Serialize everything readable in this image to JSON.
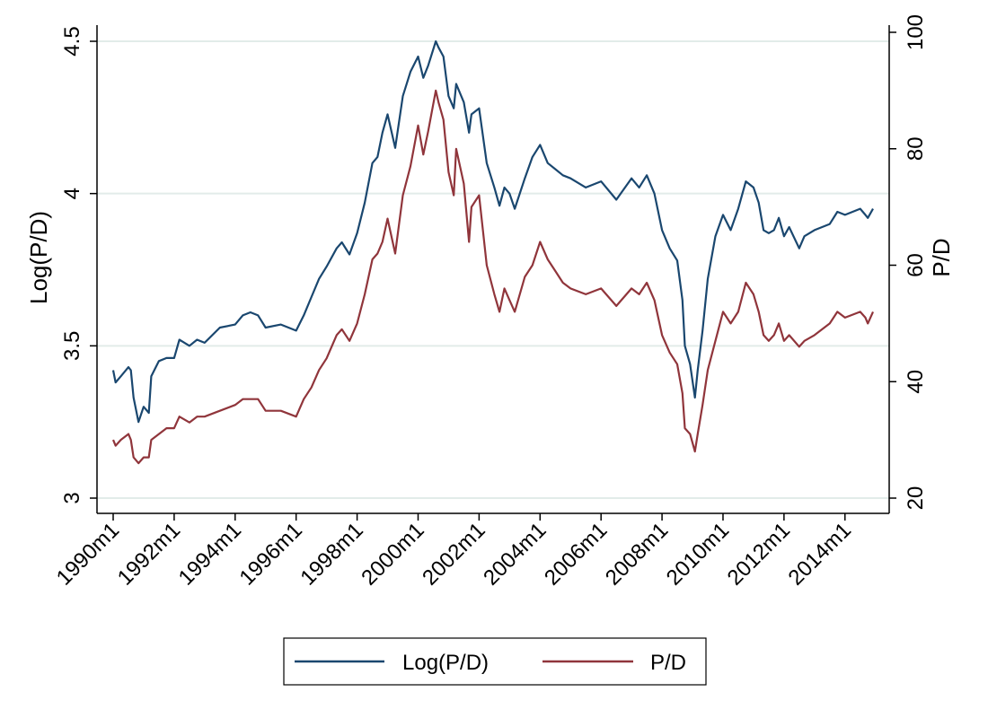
{
  "chart_data": {
    "type": "line",
    "title": "",
    "xlabel": "",
    "ylabel_left": "Log(P/D)",
    "ylabel_right": "P/D",
    "x_range": [
      1990.0,
      2014.92
    ],
    "ylim_left": [
      3,
      4.5
    ],
    "ylim_right": [
      20,
      100
    ],
    "y_ticks_left": [
      "3",
      "3.5",
      "4",
      "4.5"
    ],
    "y_ticks_right": [
      "20",
      "40",
      "60",
      "80",
      "100"
    ],
    "x_ticks": [
      "1990m1",
      "1992m1",
      "1994m1",
      "1996m1",
      "1998m1",
      "2000m1",
      "2002m1",
      "2004m1",
      "2006m1",
      "2008m1",
      "2010m1",
      "2012m1",
      "2014m1"
    ],
    "grid": "horizontal",
    "legend_position": "bottom",
    "colors": {
      "log_pd": "#1a476f",
      "pd": "#90353b",
      "grid": "#e2ece9"
    },
    "x": [
      1990.0,
      1990.08,
      1990.25,
      1990.5,
      1990.58,
      1990.67,
      1990.83,
      1991.0,
      1991.17,
      1991.25,
      1991.5,
      1991.75,
      1992.0,
      1992.17,
      1992.5,
      1992.75,
      1993.0,
      1993.5,
      1994.0,
      1994.25,
      1994.5,
      1994.75,
      1995.0,
      1995.5,
      1996.0,
      1996.25,
      1996.5,
      1996.75,
      1997.0,
      1997.33,
      1997.5,
      1997.75,
      1998.0,
      1998.25,
      1998.5,
      1998.67,
      1998.83,
      1999.0,
      1999.25,
      1999.5,
      1999.75,
      2000.0,
      2000.17,
      2000.33,
      2000.58,
      2000.67,
      2000.83,
      2001.0,
      2001.17,
      2001.25,
      2001.5,
      2001.67,
      2001.75,
      2002.0,
      2002.25,
      2002.5,
      2002.67,
      2002.83,
      2003.0,
      2003.17,
      2003.5,
      2003.75,
      2004.0,
      2004.25,
      2004.5,
      2004.75,
      2005.0,
      2005.5,
      2006.0,
      2006.5,
      2007.0,
      2007.25,
      2007.5,
      2007.75,
      2008.0,
      2008.25,
      2008.5,
      2008.67,
      2008.75,
      2008.92,
      2009.08,
      2009.17,
      2009.33,
      2009.5,
      2009.75,
      2010.0,
      2010.25,
      2010.5,
      2010.75,
      2011.0,
      2011.17,
      2011.33,
      2011.5,
      2011.67,
      2011.83,
      2012.0,
      2012.17,
      2012.5,
      2012.67,
      2013.0,
      2013.25,
      2013.5,
      2013.75,
      2014.0,
      2014.5,
      2014.67,
      2014.75,
      2014.92
    ],
    "series": [
      {
        "name": "Log(P/D)",
        "axis": "left",
        "values": [
          3.42,
          3.38,
          3.4,
          3.43,
          3.42,
          3.33,
          3.25,
          3.3,
          3.28,
          3.4,
          3.45,
          3.46,
          3.46,
          3.52,
          3.5,
          3.52,
          3.51,
          3.56,
          3.57,
          3.6,
          3.61,
          3.6,
          3.56,
          3.57,
          3.55,
          3.6,
          3.66,
          3.72,
          3.76,
          3.82,
          3.84,
          3.8,
          3.87,
          3.97,
          4.1,
          4.12,
          4.2,
          4.26,
          4.15,
          4.32,
          4.4,
          4.45,
          4.38,
          4.42,
          4.5,
          4.48,
          4.45,
          4.32,
          4.28,
          4.36,
          4.3,
          4.2,
          4.26,
          4.28,
          4.1,
          4.02,
          3.96,
          4.02,
          4.0,
          3.95,
          4.05,
          4.12,
          4.16,
          4.1,
          4.08,
          4.06,
          4.05,
          4.02,
          4.04,
          3.98,
          4.05,
          4.02,
          4.06,
          4.0,
          3.88,
          3.82,
          3.78,
          3.65,
          3.5,
          3.44,
          3.33,
          3.42,
          3.55,
          3.72,
          3.86,
          3.93,
          3.88,
          3.95,
          4.04,
          4.02,
          3.97,
          3.88,
          3.87,
          3.88,
          3.92,
          3.86,
          3.89,
          3.82,
          3.86,
          3.88,
          3.89,
          3.9,
          3.94,
          3.93,
          3.95,
          3.93,
          3.92,
          3.95
        ]
      },
      {
        "name": "P/D",
        "axis": "right",
        "values": [
          30,
          29,
          30,
          31,
          30,
          27,
          26,
          27,
          27,
          30,
          31,
          32,
          32,
          34,
          33,
          34,
          34,
          35,
          36,
          37,
          37,
          37,
          35,
          35,
          34,
          37,
          39,
          42,
          44,
          48,
          49,
          47,
          50,
          55,
          61,
          62,
          64,
          68,
          62,
          72,
          77,
          84,
          79,
          83,
          90,
          88,
          85,
          76,
          72,
          80,
          74,
          64,
          70,
          72,
          60,
          55,
          52,
          56,
          54,
          52,
          58,
          60,
          64,
          61,
          59,
          57,
          56,
          55,
          56,
          53,
          56,
          55,
          57,
          54,
          48,
          45,
          43,
          38,
          32,
          31,
          28,
          31,
          36,
          42,
          47,
          52,
          50,
          52,
          57,
          55,
          52,
          48,
          47,
          48,
          50,
          47,
          48,
          46,
          47,
          48,
          49,
          50,
          52,
          51,
          52,
          51,
          50,
          52
        ]
      }
    ]
  }
}
